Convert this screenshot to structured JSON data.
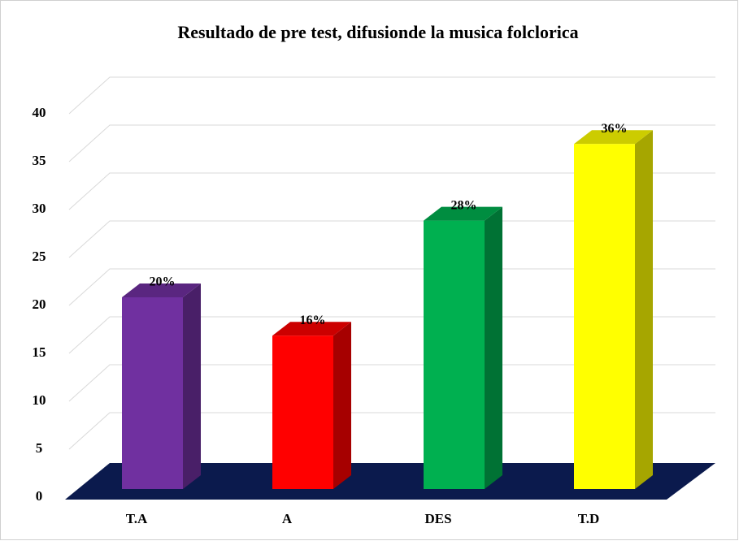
{
  "chart_data": {
    "type": "bar3d",
    "title": "Resultado de pre test,  difusionde  la musica folclorica",
    "categories": [
      "T.A",
      "A",
      "DES",
      "T.D"
    ],
    "values": [
      20,
      16,
      28,
      36
    ],
    "value_labels": [
      "20%",
      "16%",
      "28%",
      "36%"
    ],
    "colors": [
      "#7030a0",
      "#ff0000",
      "#00b050",
      "#ffff00"
    ],
    "ylim": [
      0,
      40
    ],
    "yticks": [
      0,
      5,
      10,
      15,
      20,
      25,
      30,
      35,
      40
    ],
    "grid": true
  }
}
